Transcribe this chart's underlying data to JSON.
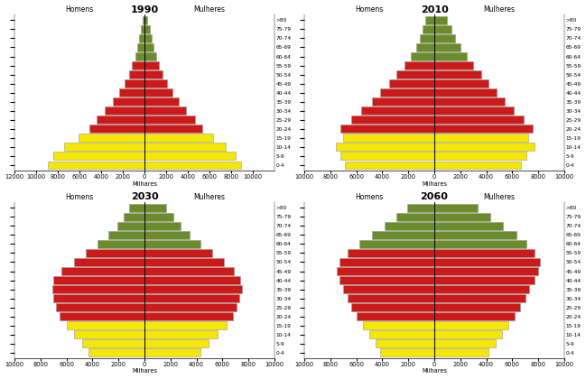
{
  "years": [
    "1990",
    "2010",
    "2030",
    "2060"
  ],
  "age_labels_top_to_bottom": [
    ">80",
    "75-79",
    "70-74",
    "65-69",
    "60-64",
    "55-59",
    "50-54",
    "45-49",
    "40-44",
    "35-39",
    "30-34",
    "25-29",
    "20-24",
    "15-19",
    "10-14",
    "5-9",
    "0-4"
  ],
  "colors": {
    "green": "#6b8c2a",
    "red": "#cc1a1a",
    "yellow": "#f5e800"
  },
  "age_color_keys": [
    "green",
    "green",
    "green",
    "green",
    "green",
    "red",
    "red",
    "red",
    "red",
    "red",
    "red",
    "red",
    "red",
    "yellow",
    "yellow",
    "yellow",
    "yellow"
  ],
  "data": {
    "1990": {
      "male": [
        190,
        330,
        490,
        680,
        870,
        1150,
        1450,
        1850,
        2350,
        2950,
        3650,
        4450,
        5100,
        6100,
        7400,
        8400,
        8900
      ],
      "female": [
        280,
        470,
        670,
        870,
        1070,
        1350,
        1650,
        2050,
        2550,
        3150,
        3800,
        4650,
        5350,
        6350,
        7500,
        8450,
        8950
      ]
    },
    "2010": {
      "male": [
        700,
        900,
        1100,
        1400,
        1800,
        2300,
        2900,
        3500,
        4200,
        4800,
        5600,
        6400,
        7200,
        7000,
        7600,
        7200,
        6900
      ],
      "female": [
        1000,
        1300,
        1600,
        2000,
        2500,
        3000,
        3600,
        4200,
        4800,
        5400,
        6100,
        6900,
        7600,
        7200,
        7700,
        7100,
        6700
      ]
    },
    "2030": {
      "male": [
        1200,
        1600,
        2100,
        2800,
        3600,
        4500,
        5400,
        6400,
        7000,
        7100,
        7000,
        6800,
        6500,
        6000,
        5400,
        4800,
        4300
      ],
      "female": [
        1700,
        2200,
        2800,
        3500,
        4300,
        5200,
        6100,
        6900,
        7400,
        7500,
        7300,
        7100,
        6800,
        6300,
        5600,
        4900,
        4300
      ]
    },
    "2060": {
      "male": [
        2100,
        2900,
        3800,
        4800,
        5800,
        6700,
        7300,
        7500,
        7300,
        7000,
        6700,
        6400,
        6000,
        5500,
        5000,
        4500,
        4200
      ],
      "female": [
        3300,
        4300,
        5300,
        6300,
        7100,
        7700,
        8100,
        8000,
        7700,
        7300,
        7000,
        6600,
        6200,
        5700,
        5200,
        4700,
        4200
      ]
    }
  },
  "xlims": {
    "1990": 12000,
    "2010": 10000,
    "2030": 10000,
    "2060": 10000
  },
  "xtick_vals": {
    "1990": [
      12000,
      10000,
      8000,
      6000,
      4000,
      2000,
      0,
      2000,
      4000,
      6000,
      8000,
      10000
    ],
    "2010": [
      10000,
      8000,
      6000,
      4000,
      2000,
      0,
      2000,
      4000,
      6000,
      8000,
      10000
    ],
    "2030": [
      10000,
      8000,
      6000,
      4000,
      2000,
      0,
      2000,
      4000,
      6000,
      8000,
      10000
    ],
    "2060": [
      10000,
      8000,
      6000,
      4000,
      2000,
      0,
      2000,
      4000,
      6000,
      8000,
      10000
    ]
  },
  "xlabel": "Milhares",
  "homens_label": "Homens",
  "mulheres_label": "Mulheres",
  "edgecolor": "#999999",
  "background": "#ffffff",
  "title_fontsize": 8,
  "label_fontsize": 5.5,
  "tick_fontsize": 4.8,
  "age_label_fontsize": 4.2
}
